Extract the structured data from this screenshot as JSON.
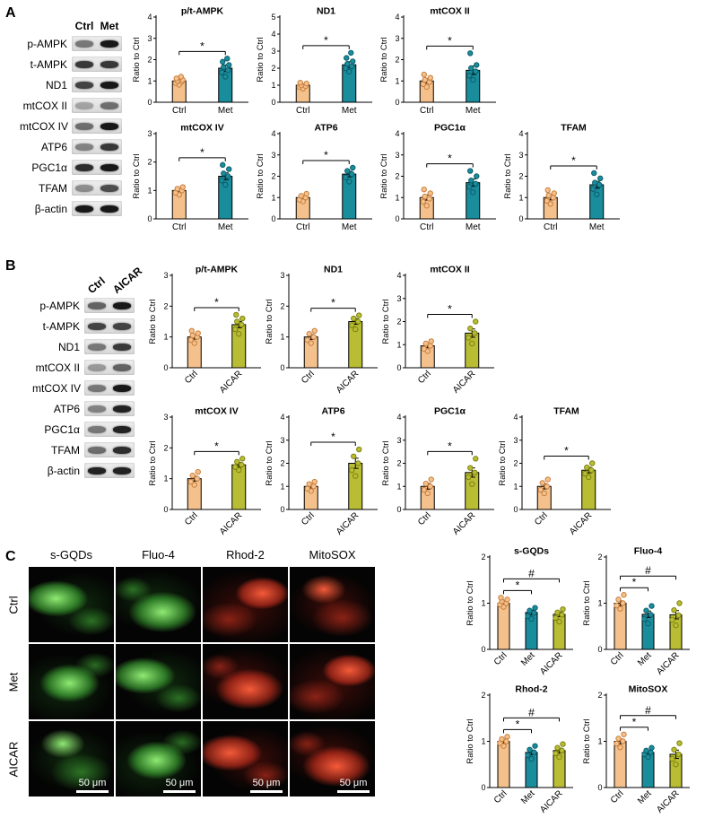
{
  "figure": {
    "panel_a_label": "A",
    "panel_b_label": "B",
    "panel_c_label": "C"
  },
  "colors": {
    "ctrl": "#F4C18C",
    "ctrl_dot": "#C97F3E",
    "met": "#1A8D9D",
    "met_dot": "#0C5E6B",
    "aicar": "#B9BD34",
    "aicar_dot": "#7E830F"
  },
  "blot_a": {
    "lanes": [
      "Ctrl",
      "Met"
    ],
    "rows": [
      "p-AMPK",
      "t-AMPK",
      "ND1",
      "mtCOX II",
      "mtCOX IV",
      "ATP6",
      "PGC1α",
      "TFAM",
      "β-actin"
    ]
  },
  "blot_b": {
    "lanes": [
      "Ctrl",
      "AICAR"
    ],
    "rows": [
      "p-AMPK",
      "t-AMPK",
      "ND1",
      "mtCOX II",
      "mtCOX IV",
      "ATP6",
      "PGC1α",
      "TFAM",
      "β-actin"
    ]
  },
  "microscopy": {
    "columns": [
      "s-GQDs",
      "Fluo-4",
      "Rhod-2",
      "MitoSOX"
    ],
    "rows": [
      "Ctrl",
      "Met",
      "AICAR"
    ],
    "scale_bar": "50 μm"
  },
  "chart_data": [
    {
      "panel": "A",
      "type": "bar",
      "title": "p/t-AMPK",
      "ylabel": "Ratio to Ctrl",
      "categories": [
        "Ctrl",
        "Met"
      ],
      "values": [
        1.0,
        1.6
      ],
      "errors": [
        0.07,
        0.15
      ],
      "points": [
        [
          0.82,
          0.9,
          0.97,
          1.0,
          1.05,
          1.12,
          1.2
        ],
        [
          1.2,
          1.4,
          1.5,
          1.65,
          1.75,
          1.9,
          2.05
        ]
      ],
      "ylim": [
        0,
        4
      ],
      "sig": [
        {
          "mark": "*",
          "from": 0,
          "to": 1
        }
      ]
    },
    {
      "panel": "A",
      "type": "bar",
      "title": "ND1",
      "ylabel": "Ratio to Ctrl",
      "categories": [
        "Ctrl",
        "Met"
      ],
      "values": [
        1.0,
        2.2
      ],
      "errors": [
        0.07,
        0.18
      ],
      "points": [
        [
          0.8,
          0.9,
          0.95,
          1.0,
          1.1,
          1.15
        ],
        [
          1.8,
          2.0,
          2.1,
          2.25,
          2.4,
          2.6,
          2.9
        ]
      ],
      "ylim": [
        0,
        5
      ],
      "sig": [
        {
          "mark": "*",
          "from": 0,
          "to": 1
        }
      ]
    },
    {
      "panel": "A",
      "type": "bar",
      "title": "mtCOX II",
      "ylabel": "Ratio to Ctrl",
      "categories": [
        "Ctrl",
        "Met"
      ],
      "values": [
        1.0,
        1.5
      ],
      "errors": [
        0.1,
        0.2
      ],
      "points": [
        [
          0.72,
          0.85,
          0.95,
          1.05,
          1.15,
          1.3
        ],
        [
          1.05,
          1.25,
          1.45,
          1.6,
          1.75,
          2.3
        ]
      ],
      "ylim": [
        0,
        4
      ],
      "sig": [
        {
          "mark": "*",
          "from": 0,
          "to": 1
        }
      ]
    },
    {
      "panel": "A",
      "type": "bar",
      "title": "mtCOX IV",
      "ylabel": "Ratio to Ctrl",
      "categories": [
        "Ctrl",
        "Met"
      ],
      "values": [
        1.0,
        1.5
      ],
      "errors": [
        0.06,
        0.12
      ],
      "points": [
        [
          0.85,
          0.92,
          1.0,
          1.06,
          1.12
        ],
        [
          1.2,
          1.35,
          1.5,
          1.6,
          1.75,
          1.9
        ]
      ],
      "ylim": [
        0,
        3
      ],
      "sig": [
        {
          "mark": "*",
          "from": 0,
          "to": 1
        }
      ]
    },
    {
      "panel": "A",
      "type": "bar",
      "title": "ATP6",
      "ylabel": "Ratio to Ctrl",
      "categories": [
        "Ctrl",
        "Met"
      ],
      "values": [
        1.0,
        2.1
      ],
      "errors": [
        0.07,
        0.13
      ],
      "points": [
        [
          0.82,
          0.9,
          1.0,
          1.08,
          1.18
        ],
        [
          1.75,
          1.95,
          2.1,
          2.25,
          2.4
        ]
      ],
      "ylim": [
        0,
        4
      ],
      "sig": [
        {
          "mark": "*",
          "from": 0,
          "to": 1
        }
      ]
    },
    {
      "panel": "A",
      "type": "bar",
      "title": "PGC1α",
      "ylabel": "Ratio to Ctrl",
      "categories": [
        "Ctrl",
        "Met"
      ],
      "values": [
        1.0,
        1.7
      ],
      "errors": [
        0.12,
        0.17
      ],
      "points": [
        [
          0.62,
          0.8,
          0.95,
          1.05,
          1.2,
          1.38
        ],
        [
          1.25,
          1.5,
          1.65,
          1.8,
          2.0,
          2.25
        ]
      ],
      "ylim": [
        0,
        4
      ],
      "sig": [
        {
          "mark": "*",
          "from": 0,
          "to": 1
        }
      ]
    },
    {
      "panel": "A",
      "type": "bar",
      "title": "TFAM",
      "ylabel": "Ratio to Ctrl",
      "categories": [
        "Ctrl",
        "Met"
      ],
      "values": [
        1.0,
        1.6
      ],
      "errors": [
        0.11,
        0.16
      ],
      "points": [
        [
          0.7,
          0.85,
          1.0,
          1.1,
          1.2,
          1.35
        ],
        [
          1.15,
          1.4,
          1.6,
          1.7,
          1.9,
          2.15
        ]
      ],
      "ylim": [
        0,
        4
      ],
      "sig": [
        {
          "mark": "*",
          "from": 0,
          "to": 1
        }
      ]
    },
    {
      "panel": "B",
      "type": "bar",
      "title": "p/t-AMPK",
      "ylabel": "Ratio to Ctrl",
      "categories": [
        "Ctrl",
        "AICAR"
      ],
      "values": [
        1.0,
        1.4
      ],
      "errors": [
        0.07,
        0.1
      ],
      "points": [
        [
          0.8,
          0.9,
          1.0,
          1.05,
          1.12,
          1.2
        ],
        [
          1.1,
          1.25,
          1.4,
          1.5,
          1.6,
          1.72
        ]
      ],
      "ylim": [
        0,
        3
      ],
      "sig": [
        {
          "mark": "*",
          "from": 0,
          "to": 1
        }
      ]
    },
    {
      "panel": "B",
      "type": "bar",
      "title": "ND1",
      "ylabel": "Ratio to Ctrl",
      "categories": [
        "Ctrl",
        "AICAR"
      ],
      "values": [
        1.0,
        1.5
      ],
      "errors": [
        0.08,
        0.09
      ],
      "points": [
        [
          0.8,
          0.9,
          1.0,
          1.1,
          1.2
        ],
        [
          1.25,
          1.38,
          1.5,
          1.6,
          1.7
        ]
      ],
      "ylim": [
        0,
        3
      ],
      "sig": [
        {
          "mark": "*",
          "from": 0,
          "to": 1
        }
      ]
    },
    {
      "panel": "B",
      "type": "bar",
      "title": "mtCOX II",
      "ylabel": "Ratio to Ctrl",
      "categories": [
        "Ctrl",
        "AICAR"
      ],
      "values": [
        0.95,
        1.5
      ],
      "errors": [
        0.08,
        0.18
      ],
      "points": [
        [
          0.72,
          0.82,
          0.95,
          1.05,
          1.15
        ],
        [
          1.05,
          1.3,
          1.5,
          1.7,
          2.0
        ]
      ],
      "ylim": [
        0,
        4
      ],
      "sig": [
        {
          "mark": "*",
          "from": 0,
          "to": 1
        }
      ]
    },
    {
      "panel": "B",
      "type": "bar",
      "title": "mtCOX IV",
      "ylabel": "Ratio to Ctrl",
      "categories": [
        "Ctrl",
        "AICAR"
      ],
      "values": [
        1.0,
        1.45
      ],
      "errors": [
        0.08,
        0.08
      ],
      "points": [
        [
          0.8,
          0.9,
          1.0,
          1.1,
          1.22
        ],
        [
          1.28,
          1.38,
          1.45,
          1.55,
          1.65
        ]
      ],
      "ylim": [
        0,
        3
      ],
      "sig": [
        {
          "mark": "*",
          "from": 0,
          "to": 1
        }
      ]
    },
    {
      "panel": "B",
      "type": "bar",
      "title": "ATP6",
      "ylabel": "Ratio to Ctrl",
      "categories": [
        "Ctrl",
        "AICAR"
      ],
      "values": [
        1.0,
        2.0
      ],
      "errors": [
        0.08,
        0.22
      ],
      "points": [
        [
          0.8,
          0.9,
          1.0,
          1.1,
          1.2
        ],
        [
          1.45,
          1.7,
          2.0,
          2.3,
          2.6
        ]
      ],
      "ylim": [
        0,
        4
      ],
      "sig": [
        {
          "mark": "*",
          "from": 0,
          "to": 1
        }
      ]
    },
    {
      "panel": "B",
      "type": "bar",
      "title": "PGC1α",
      "ylabel": "Ratio to Ctrl",
      "categories": [
        "Ctrl",
        "AICAR"
      ],
      "values": [
        1.0,
        1.6
      ],
      "errors": [
        0.12,
        0.2
      ],
      "points": [
        [
          0.7,
          0.85,
          1.0,
          1.12,
          1.3
        ],
        [
          1.1,
          1.4,
          1.6,
          1.8,
          2.2
        ]
      ],
      "ylim": [
        0,
        4
      ],
      "sig": [
        {
          "mark": "*",
          "from": 0,
          "to": 1
        }
      ]
    },
    {
      "panel": "B",
      "type": "bar",
      "title": "TFAM",
      "ylabel": "Ratio to Ctrl",
      "categories": [
        "Ctrl",
        "AICAR"
      ],
      "values": [
        1.0,
        1.7
      ],
      "errors": [
        0.11,
        0.12
      ],
      "points": [
        [
          0.7,
          0.85,
          1.0,
          1.15,
          1.3
        ],
        [
          1.4,
          1.55,
          1.7,
          1.82,
          2.0
        ]
      ],
      "ylim": [
        0,
        4
      ],
      "sig": [
        {
          "mark": "*",
          "from": 0,
          "to": 1
        }
      ]
    },
    {
      "panel": "C",
      "type": "bar",
      "title": "s-GQDs",
      "ylabel": "Ratio to Ctrl",
      "categories": [
        "Ctrl",
        "Met",
        "AICAR"
      ],
      "values": [
        1.0,
        0.8,
        0.76
      ],
      "errors": [
        0.04,
        0.05,
        0.05
      ],
      "points": [
        [
          0.92,
          0.97,
          1.0,
          1.04,
          1.08,
          1.12
        ],
        [
          0.66,
          0.72,
          0.79,
          0.84,
          0.9
        ],
        [
          0.6,
          0.68,
          0.75,
          0.8,
          0.87
        ]
      ],
      "ylim": [
        0,
        2
      ],
      "sig": [
        {
          "mark": "*",
          "from": 0,
          "to": 1
        },
        {
          "mark": "#",
          "from": 0,
          "to": 2
        }
      ]
    },
    {
      "panel": "C",
      "type": "bar",
      "title": "Fluo-4",
      "ylabel": "Ratio to Ctrl",
      "categories": [
        "Ctrl",
        "Met",
        "AICAR"
      ],
      "values": [
        1.0,
        0.76,
        0.75
      ],
      "errors": [
        0.05,
        0.07,
        0.09
      ],
      "points": [
        [
          0.88,
          0.95,
          1.0,
          1.08,
          1.18
        ],
        [
          0.56,
          0.66,
          0.75,
          0.84,
          0.94
        ],
        [
          0.52,
          0.64,
          0.74,
          0.85,
          1.0
        ]
      ],
      "ylim": [
        0,
        2
      ],
      "sig": [
        {
          "mark": "*",
          "from": 0,
          "to": 1
        },
        {
          "mark": "#",
          "from": 0,
          "to": 2
        }
      ]
    },
    {
      "panel": "C",
      "type": "bar",
      "title": "Rhod-2",
      "ylabel": "Ratio to Ctrl",
      "categories": [
        "Ctrl",
        "Met",
        "AICAR"
      ],
      "values": [
        1.0,
        0.76,
        0.8
      ],
      "errors": [
        0.04,
        0.05,
        0.05
      ],
      "points": [
        [
          0.9,
          0.96,
          1.0,
          1.05,
          1.1
        ],
        [
          0.62,
          0.7,
          0.76,
          0.82,
          0.9
        ],
        [
          0.66,
          0.74,
          0.8,
          0.86,
          0.94
        ]
      ],
      "ylim": [
        0,
        2
      ],
      "sig": [
        {
          "mark": "*",
          "from": 0,
          "to": 1
        },
        {
          "mark": "#",
          "from": 0,
          "to": 2
        }
      ]
    },
    {
      "panel": "C",
      "type": "bar",
      "title": "MitoSOX",
      "ylabel": "Ratio to Ctrl",
      "categories": [
        "Ctrl",
        "Met",
        "AICAR"
      ],
      "values": [
        1.0,
        0.76,
        0.72
      ],
      "errors": [
        0.05,
        0.04,
        0.09
      ],
      "points": [
        [
          0.87,
          0.95,
          1.0,
          1.06,
          1.15
        ],
        [
          0.66,
          0.72,
          0.76,
          0.8,
          0.86
        ],
        [
          0.5,
          0.62,
          0.72,
          0.82,
          0.96
        ]
      ],
      "ylim": [
        0,
        2
      ],
      "sig": [
        {
          "mark": "*",
          "from": 0,
          "to": 1
        },
        {
          "mark": "#",
          "from": 0,
          "to": 2
        }
      ]
    }
  ]
}
